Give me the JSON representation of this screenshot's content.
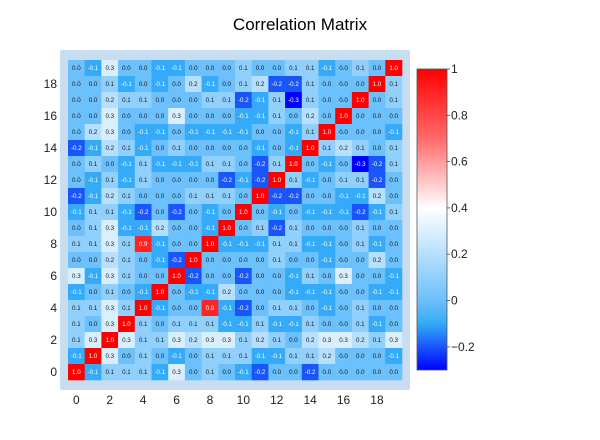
{
  "chart_data": {
    "type": "heatmap",
    "title": "Correlation Matrix",
    "xlabel": "",
    "ylabel": "",
    "x_ticks": [
      "0",
      "2",
      "4",
      "6",
      "8",
      "10",
      "12",
      "14",
      "16",
      "18"
    ],
    "y_ticks": [
      "0",
      "2",
      "4",
      "6",
      "8",
      "10",
      "12",
      "14",
      "16",
      "18"
    ],
    "colorscale": [
      {
        "value": -0.3,
        "color": "#0000ff"
      },
      {
        "value": -0.1,
        "color": "#34aaf8"
      },
      {
        "value": 0.0,
        "color": "#6cc0fb"
      },
      {
        "value": 0.4,
        "color": "#ffffff"
      },
      {
        "value": 0.7,
        "color": "#ff6a6a"
      },
      {
        "value": 1.0,
        "color": "#ff0000"
      }
    ],
    "colorbar": {
      "ticks": [
        "1",
        "0.8",
        "0.6",
        "0.4",
        "0.2",
        "0",
        "−0.2"
      ],
      "tick_values": [
        1,
        0.8,
        0.6,
        0.4,
        0.2,
        0,
        -0.2
      ],
      "range": [
        -0.3,
        1.0
      ]
    },
    "frame_color": "#c8def0",
    "grid": false,
    "rows_top_to_bottom": [
      [
        "0.0",
        "-0.1",
        "0.3",
        "0.0",
        "0.0",
        "-0.1",
        "-0.1",
        "0.0",
        "0.0",
        "0.0",
        "0.1",
        "0.0",
        "0.0",
        "0.1",
        "0.1",
        "-0.1",
        "0.0",
        "0.1",
        "0.0",
        "1.0"
      ],
      [
        "0.0",
        "0.0",
        "0.1",
        "-0.1",
        "0.0",
        "-0.1",
        "0.0",
        "0.2",
        "-0.1",
        "0.0",
        "0.1",
        "0.2",
        "-0.2",
        "-0.2",
        "0.1",
        "0.0",
        "0.0",
        "0.0",
        "1.0",
        "0.1"
      ],
      [
        "0.0",
        "0.0",
        "0.2",
        "0.1",
        "0.1",
        "0.0",
        "0.0",
        "0.0",
        "0.1",
        "0.1",
        "-0.2",
        "-0.1",
        "0.1",
        "-0.3",
        "0.1",
        "0.0",
        "0.0",
        "1.0",
        "0.0",
        "0.1"
      ],
      [
        "0.0",
        "0.0",
        "0.3",
        "0.0",
        "0.0",
        "0.0",
        "0.3",
        "0.0",
        "0.0",
        "0.0",
        "-0.1",
        "-0.1",
        "0.1",
        "0.0",
        "0.2",
        "0.0",
        "1.0",
        "0.0",
        "0.0",
        "0.0"
      ],
      [
        "0.0",
        "0.2",
        "0.3",
        "0.0",
        "-0.1",
        "-0.1",
        "0.0",
        "-0.1",
        "-0.1",
        "-0.1",
        "-0.1",
        "0.0",
        "0.0",
        "-0.1",
        "0.1",
        "1.0",
        "0.0",
        "0.0",
        "0.0",
        "-0.1"
      ],
      [
        "-0.2",
        "-0.1",
        "0.2",
        "0.1",
        "-0.1",
        "0.0",
        "0.1",
        "0.0",
        "0.0",
        "0.0",
        "0.0",
        "-0.1",
        "0.0",
        "-0.1",
        "1.0",
        "0.1",
        "0.2",
        "0.1",
        "0.0",
        "0.1"
      ],
      [
        "0.0",
        "0.1",
        "0.0",
        "-0.1",
        "0.1",
        "-0.1",
        "-0.1",
        "-0.1",
        "0.1",
        "0.1",
        "0.0",
        "-0.2",
        "0.1",
        "1.0",
        "0.0",
        "-0.1",
        "0.0",
        "-0.3",
        "-0.2",
        "0.1"
      ],
      [
        "0.0",
        "-0.1",
        "0.1",
        "-0.1",
        "0.1",
        "0.0",
        "0.0",
        "0.0",
        "0.0",
        "-0.2",
        "-0.1",
        "-0.2",
        "1.0",
        "0.1",
        "-0.1",
        "0.0",
        "0.1",
        "0.1",
        "-0.2",
        "0.0"
      ],
      [
        "-0.2",
        "-0.1",
        "0.2",
        "0.1",
        "0.0",
        "0.0",
        "0.0",
        "0.1",
        "0.1",
        "0.1",
        "0.0",
        "1.0",
        "-0.2",
        "-0.2",
        "0.0",
        "0.0",
        "-0.1",
        "-0.1",
        "0.2",
        "0.0"
      ],
      [
        "-0.1",
        "0.1",
        "0.1",
        "-0.1",
        "-0.2",
        "0.0",
        "-0.2",
        "0.0",
        "-0.1",
        "0.0",
        "1.0",
        "0.0",
        "-0.1",
        "0.0",
        "-0.1",
        "-0.1",
        "-0.1",
        "-0.2",
        "-0.1",
        "0.1"
      ],
      [
        "0.0",
        "0.1",
        "0.3",
        "-0.1",
        "-0.1",
        "0.2",
        "0.0",
        "0.0",
        "-0.1",
        "1.0",
        "0.0",
        "0.1",
        "-0.2",
        "0.1",
        "0.0",
        "0.0",
        "0.0",
        "0.1",
        "0.0",
        "0.0"
      ],
      [
        "0.1",
        "0.1",
        "0.3",
        "0.1",
        "0.9",
        "-0.1",
        "0.0",
        "0.0",
        "1.0",
        "-0.1",
        "-0.1",
        "-0.1",
        "0.1",
        "0.1",
        "-0.1",
        "-0.1",
        "0.0",
        "0.1",
        "-0.1",
        "0.0"
      ],
      [
        "0.0",
        "0.0",
        "0.2",
        "0.1",
        "0.0",
        "-0.1",
        "-0.2",
        "1.0",
        "0.0",
        "0.0",
        "0.0",
        "0.0",
        "0.1",
        "0.0",
        "0.0",
        "-0.1",
        "0.0",
        "0.0",
        "0.2",
        "0.0"
      ],
      [
        "0.3",
        "-0.1",
        "0.3",
        "0.1",
        "0.0",
        "0.0",
        "1.0",
        "-0.2",
        "0.0",
        "0.0",
        "-0.2",
        "0.0",
        "0.0",
        "-0.1",
        "0.1",
        "0.0",
        "0.3",
        "0.0",
        "0.0",
        "-0.1"
      ],
      [
        "-0.1",
        "0.0",
        "0.1",
        "0.0",
        "-0.1",
        "1.0",
        "0.0",
        "-0.1",
        "-0.1",
        "0.2",
        "0.0",
        "0.0",
        "0.0",
        "-0.1",
        "-0.1",
        "-0.1",
        "0.0",
        "0.0",
        "-0.1",
        "-0.1"
      ],
      [
        "0.1",
        "0.1",
        "0.3",
        "0.1",
        "1.0",
        "-0.1",
        "0.0",
        "0.0",
        "0.9",
        "-0.1",
        "-0.2",
        "0.0",
        "0.1",
        "0.1",
        "0.0",
        "-0.1",
        "0.0",
        "0.1",
        "0.0",
        "0.0"
      ],
      [
        "0.1",
        "0.0",
        "0.3",
        "1.0",
        "0.1",
        "0.0",
        "0.1",
        "0.1",
        "0.1",
        "-0.1",
        "-0.1",
        "0.1",
        "-0.1",
        "-0.1",
        "0.1",
        "0.0",
        "0.0",
        "0.1",
        "-0.1",
        "0.0"
      ],
      [
        "0.1",
        "0.3",
        "1.0",
        "0.3",
        "0.1",
        "0.1",
        "0.3",
        "0.2",
        "0.3",
        "0.3",
        "0.1",
        "0.2",
        "0.1",
        "0.0",
        "0.2",
        "0.3",
        "0.3",
        "0.2",
        "0.1",
        "0.3"
      ],
      [
        "-0.1",
        "1.0",
        "0.3",
        "0.0",
        "0.1",
        "0.0",
        "-0.1",
        "0.0",
        "0.1",
        "0.1",
        "0.1",
        "-0.1",
        "-0.1",
        "0.1",
        "0.1",
        "0.2",
        "0.0",
        "0.0",
        "0.0",
        "-0.1"
      ],
      [
        "1.0",
        "-0.1",
        "0.1",
        "0.1",
        "0.1",
        "-0.1",
        "0.3",
        "0.0",
        "0.1",
        "0.0",
        "-0.1",
        "-0.2",
        "0.0",
        "0.0",
        "-0.2",
        "0.0",
        "0.0",
        "0.0",
        "0.0",
        "0.0"
      ]
    ]
  }
}
